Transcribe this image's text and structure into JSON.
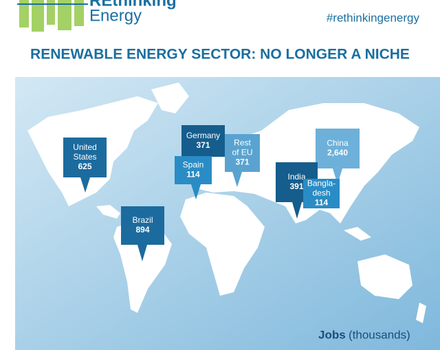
{
  "header": {
    "logo_line1": "REthinking",
    "logo_line2": "Energy",
    "hashtag": "#rethinkingenergy"
  },
  "title": "RENEWABLE ENERGY SECTOR: NO LONGER A NICHE",
  "callouts": [
    {
      "label": [
        "United",
        "States"
      ],
      "value": "625"
    },
    {
      "label": [
        "Germany"
      ],
      "value": "371"
    },
    {
      "label": [
        "Rest",
        "of EU"
      ],
      "value": "371"
    },
    {
      "label": [
        "Spain"
      ],
      "value": "114"
    },
    {
      "label": [
        "Brazil"
      ],
      "value": "894"
    },
    {
      "label": [
        "China"
      ],
      "value": "2,640"
    },
    {
      "label": [
        "India"
      ],
      "value": "391"
    },
    {
      "label": [
        "Bangla-",
        "desh"
      ],
      "value": "114"
    }
  ],
  "footer": {
    "bold": "Jobs",
    "normal": "(thousands)"
  }
}
